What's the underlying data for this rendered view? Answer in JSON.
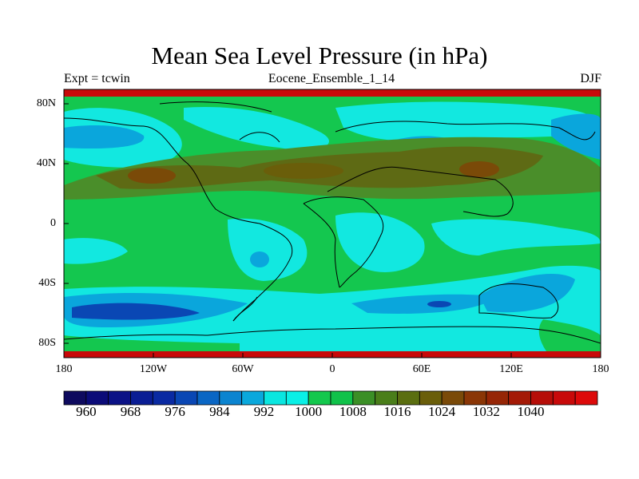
{
  "title": "Mean Sea Level Pressure (in hPa)",
  "left_label": "Expt = tcwin",
  "center_label": "Eocene_Ensemble_1_14",
  "right_label": "DJF",
  "lat_labels": [
    "80N",
    "40N",
    "0",
    "40S",
    "80S"
  ],
  "lon_labels": [
    "180",
    "120W",
    "60W",
    "0",
    "60E",
    "120E",
    "180"
  ],
  "colorbar": {
    "labels": [
      "960",
      "968",
      "976",
      "984",
      "992",
      "1000",
      "1008",
      "1016",
      "1024",
      "1032",
      "1040"
    ],
    "colors": [
      "#0e0a5e",
      "#0b0b78",
      "#0b1286",
      "#0a1d94",
      "#0a2aa2",
      "#0a47b4",
      "#0a66c4",
      "#0b84d0",
      "#0aa8dc",
      "#0ae6e0",
      "#0af0e6",
      "#13c84d",
      "#10c24a",
      "#3b8f26",
      "#4a7e1a",
      "#5a6e10",
      "#6a5e0a",
      "#7a4a08",
      "#8a3606",
      "#962606",
      "#a41a06",
      "#b60e08",
      "#c80a0a",
      "#dd0a0a"
    ]
  },
  "colors": {
    "ocean_green": "#14c74f",
    "light_cyan": "#12e8e0",
    "mid_blue": "#0aa6dc",
    "deep_blue": "#0a47b4",
    "brown_band": "#5e6a14",
    "dark_brown": "#7a4a08",
    "red_edge": "#c80a0a"
  }
}
